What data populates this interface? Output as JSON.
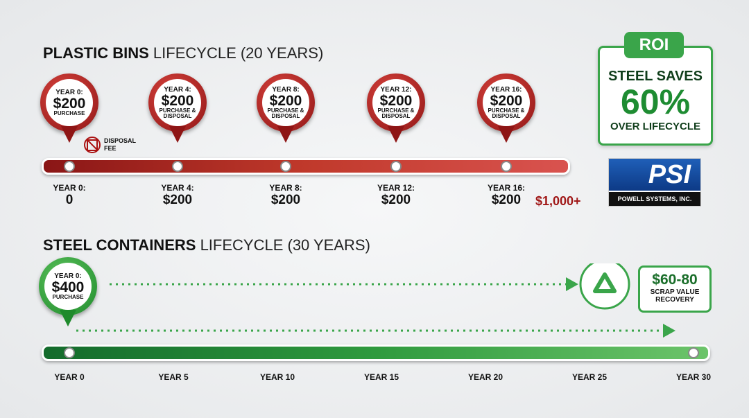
{
  "plastic": {
    "title_bold": "PLASTIC BINS",
    "title_rest": "LIFECYCLE (20 YEARS)",
    "pins": [
      {
        "label": "YEAR 0:",
        "amount": "$200",
        "note": "PURCHASE"
      },
      {
        "label": "YEAR 4:",
        "amount": "$200",
        "note": "PURCHASE & DISPOSAL"
      },
      {
        "label": "YEAR 8:",
        "amount": "$200",
        "note": "PURCHASE & DISPOSAL"
      },
      {
        "label": "YEAR 12:",
        "amount": "$200",
        "note": "PURCHASE & DISPOSAL"
      },
      {
        "label": "YEAR 16:",
        "amount": "$200",
        "note": "PURCHASE & DISPOSAL"
      }
    ],
    "disposal_fee": "DISPOSAL FEE",
    "timeline": [
      {
        "label": "YEAR 0:",
        "amount": "0"
      },
      {
        "label": "YEAR 4:",
        "amount": "$200"
      },
      {
        "label": "YEAR 8:",
        "amount": "$200"
      },
      {
        "label": "YEAR 12:",
        "amount": "$200"
      },
      {
        "label": "YEAR 16:",
        "amount": "$200"
      }
    ],
    "total": "$1,000+"
  },
  "roi": {
    "tag": "ROI",
    "line1": "STEEL SAVES",
    "big": "60%",
    "line3": "OVER LIFECYCLE"
  },
  "logo": {
    "mark": "PSI",
    "name": "POWELL SYSTEMS, INC."
  },
  "steel": {
    "title_bold": "STEEL CONTAINERS",
    "title_rest": "LIFECYCLE (30 YEARS)",
    "pin": {
      "label": "YEAR 0:",
      "amount": "$400",
      "note": "PURCHASE"
    },
    "scrap": {
      "amount": "$60-80",
      "note": "SCRAP VALUE RECOVERY"
    },
    "axis": [
      "YEAR 0",
      "YEAR 5",
      "YEAR 10",
      "YEAR 15",
      "YEAR 20",
      "YEAR 25",
      "YEAR 30"
    ]
  }
}
